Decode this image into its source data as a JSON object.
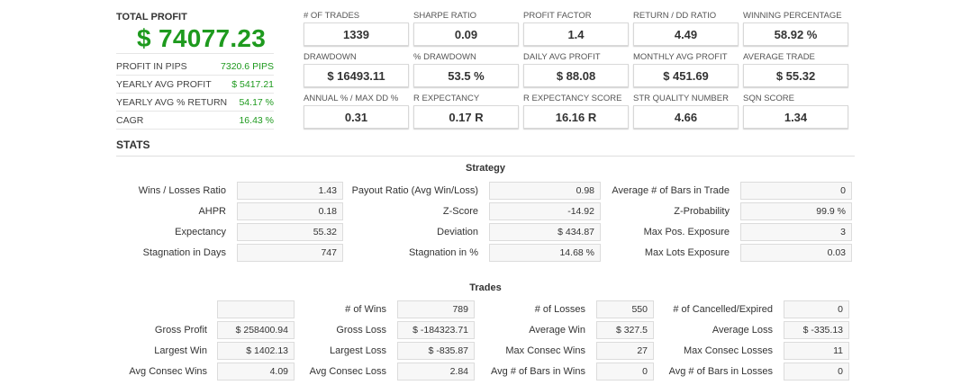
{
  "summary": {
    "total_profit_label": "TOTAL PROFIT",
    "total_profit_value": "$ 74077.23",
    "rows": [
      {
        "label": "PROFIT IN PIPS",
        "value": "7320.6 PIPS"
      },
      {
        "label": "YEARLY AVG PROFIT",
        "value": "$ 5417.21"
      },
      {
        "label": "YEARLY AVG % RETURN",
        "value": "54.17 %"
      },
      {
        "label": "CAGR",
        "value": "16.43 %"
      }
    ]
  },
  "kpis": [
    [
      {
        "label": "# OF TRADES",
        "value": "1339"
      },
      {
        "label": "SHARPE RATIO",
        "value": "0.09"
      },
      {
        "label": "PROFIT FACTOR",
        "value": "1.4"
      },
      {
        "label": "RETURN / DD RATIO",
        "value": "4.49"
      },
      {
        "label": "WINNING PERCENTAGE",
        "value": "58.92 %"
      }
    ],
    [
      {
        "label": "DRAWDOWN",
        "value": "$ 16493.11"
      },
      {
        "label": "% DRAWDOWN",
        "value": "53.5 %"
      },
      {
        "label": "DAILY AVG PROFIT",
        "value": "$ 88.08"
      },
      {
        "label": "MONTHLY AVG PROFIT",
        "value": "$ 451.69"
      },
      {
        "label": "AVERAGE TRADE",
        "value": "$ 55.32"
      }
    ],
    [
      {
        "label": "ANNUAL % / MAX DD %",
        "value": "0.31"
      },
      {
        "label": "R EXPECTANCY",
        "value": "0.17 R"
      },
      {
        "label": "R EXPECTANCY SCORE",
        "value": "16.16 R"
      },
      {
        "label": "STR QUALITY NUMBER",
        "value": "4.66"
      },
      {
        "label": "SQN SCORE",
        "value": "1.34"
      }
    ]
  ],
  "stats_title": "STATS",
  "strategy": {
    "title": "Strategy",
    "rows": [
      [
        {
          "label": "Wins / Losses Ratio",
          "value": "1.43"
        },
        {
          "label": "Payout Ratio (Avg Win/Loss)",
          "value": "0.98"
        },
        {
          "label": "Average # of Bars in Trade",
          "value": "0"
        }
      ],
      [
        {
          "label": "AHPR",
          "value": "0.18"
        },
        {
          "label": "Z-Score",
          "value": "-14.92"
        },
        {
          "label": "Z-Probability",
          "value": "99.9 %"
        }
      ],
      [
        {
          "label": "Expectancy",
          "value": "55.32"
        },
        {
          "label": "Deviation",
          "value": "$ 434.87"
        },
        {
          "label": "Max Pos. Exposure",
          "value": "3"
        }
      ],
      [
        {
          "label": "Stagnation in Days",
          "value": "747"
        },
        {
          "label": "Stagnation in %",
          "value": "14.68 %"
        },
        {
          "label": "Max Lots Exposure",
          "value": "0.03"
        }
      ]
    ]
  },
  "trades": {
    "title": "Trades",
    "rows": [
      [
        {
          "label": "",
          "value": ""
        },
        {
          "label": "# of Wins",
          "value": "789"
        },
        {
          "label": "# of Losses",
          "value": "550"
        },
        {
          "label": "# of Cancelled/Expired",
          "value": "0"
        }
      ],
      [
        {
          "label": "Gross Profit",
          "value": "$ 258400.94"
        },
        {
          "label": "Gross Loss",
          "value": "$ -184323.71"
        },
        {
          "label": "Average Win",
          "value": "$ 327.5"
        },
        {
          "label": "Average Loss",
          "value": "$ -335.13"
        }
      ],
      [
        {
          "label": "Largest Win",
          "value": "$ 1402.13"
        },
        {
          "label": "Largest Loss",
          "value": "$ -835.87"
        },
        {
          "label": "Max Consec Wins",
          "value": "27"
        },
        {
          "label": "Max Consec Losses",
          "value": "11"
        }
      ],
      [
        {
          "label": "Avg Consec Wins",
          "value": "4.09"
        },
        {
          "label": "Avg Consec Loss",
          "value": "2.84"
        },
        {
          "label": "Avg # of Bars in Wins",
          "value": "0"
        },
        {
          "label": "Avg # of Bars in Losses",
          "value": "0"
        }
      ]
    ]
  }
}
